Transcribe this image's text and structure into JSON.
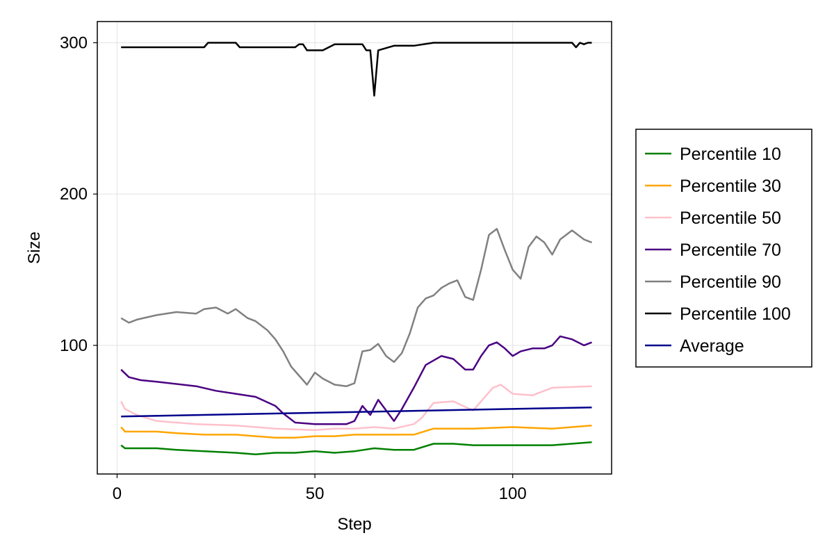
{
  "chart_data": {
    "type": "line",
    "xlabel": "Step",
    "ylabel": "Size",
    "xlim": [
      -5,
      125
    ],
    "ylim": [
      15,
      314
    ],
    "xticks": [
      0,
      50,
      100
    ],
    "yticks": [
      100,
      200,
      300
    ],
    "grid": true,
    "legend_position": "right",
    "series": [
      {
        "name": "Percentile 10",
        "color": "#008000",
        "x": [
          1,
          2,
          10,
          15,
          22,
          30,
          35,
          40,
          45,
          50,
          55,
          60,
          65,
          70,
          75,
          80,
          85,
          90,
          100,
          110,
          120
        ],
        "y": [
          34,
          32,
          32,
          31,
          30,
          29,
          28,
          29,
          29,
          30,
          29,
          30,
          32,
          31,
          31,
          35,
          35,
          34,
          34,
          34,
          36
        ]
      },
      {
        "name": "Percentile 30",
        "color": "#FFA500",
        "x": [
          1,
          2,
          10,
          15,
          22,
          30,
          35,
          40,
          45,
          50,
          55,
          60,
          65,
          70,
          75,
          80,
          85,
          90,
          100,
          110,
          120
        ],
        "y": [
          46,
          43,
          43,
          42,
          41,
          41,
          40,
          39,
          39,
          40,
          40,
          41,
          41,
          41,
          41,
          45,
          45,
          45,
          46,
          45,
          47
        ]
      },
      {
        "name": "Percentile 50",
        "color": "#FFC0CB",
        "x": [
          1,
          2,
          5,
          10,
          20,
          30,
          40,
          50,
          55,
          60,
          65,
          70,
          75,
          77,
          80,
          85,
          90,
          95,
          97,
          100,
          105,
          110,
          120
        ],
        "y": [
          63,
          58,
          54,
          50,
          48,
          47,
          45,
          44,
          45,
          45,
          46,
          45,
          48,
          52,
          62,
          63,
          57,
          72,
          74,
          68,
          67,
          72,
          73
        ]
      },
      {
        "name": "Percentile 70",
        "color": "#4B0082",
        "x": [
          1,
          3,
          6,
          10,
          20,
          25,
          30,
          35,
          40,
          42,
          45,
          50,
          55,
          58,
          60,
          62,
          64,
          66,
          70,
          72,
          75,
          78,
          80,
          82,
          85,
          88,
          90,
          92,
          94,
          96,
          98,
          100,
          102,
          105,
          108,
          110,
          112,
          115,
          118,
          120
        ],
        "y": [
          84,
          79,
          77,
          76,
          73,
          70,
          68,
          66,
          60,
          55,
          49,
          48,
          48,
          48,
          50,
          60,
          54,
          64,
          50,
          58,
          72,
          87,
          90,
          93,
          91,
          84,
          84,
          93,
          100,
          102,
          98,
          93,
          96,
          98,
          98,
          100,
          106,
          104,
          100,
          102
        ]
      },
      {
        "name": "Percentile 90",
        "color": "#808080",
        "x": [
          1,
          3,
          5,
          10,
          15,
          20,
          22,
          25,
          28,
          30,
          33,
          35,
          38,
          40,
          42,
          44,
          46,
          48,
          50,
          52,
          55,
          58,
          60,
          62,
          64,
          66,
          68,
          70,
          72,
          74,
          76,
          78,
          80,
          82,
          84,
          86,
          88,
          90,
          92,
          94,
          96,
          98,
          100,
          102,
          104,
          106,
          108,
          110,
          112,
          115,
          118,
          120
        ],
        "y": [
          118,
          115,
          117,
          120,
          122,
          121,
          124,
          125,
          121,
          124,
          118,
          116,
          110,
          104,
          96,
          86,
          80,
          74,
          82,
          78,
          74,
          73,
          75,
          96,
          97,
          101,
          93,
          89,
          95,
          108,
          125,
          131,
          133,
          138,
          141,
          143,
          132,
          130,
          150,
          173,
          177,
          163,
          150,
          144,
          165,
          172,
          168,
          160,
          170,
          176,
          170,
          168
        ]
      },
      {
        "name": "Percentile 100",
        "color": "#000000",
        "x": [
          1,
          10,
          22,
          23,
          30,
          31,
          40,
          45,
          46,
          47,
          48,
          52,
          55,
          60,
          62,
          63,
          64,
          65,
          66,
          70,
          75,
          80,
          90,
          100,
          110,
          115,
          116,
          117,
          118,
          119,
          120
        ],
        "y": [
          297,
          297,
          297,
          300,
          300,
          297,
          297,
          297,
          299,
          299,
          295,
          295,
          299,
          299,
          299,
          295,
          295,
          265,
          295,
          298,
          298,
          300,
          300,
          300,
          300,
          300,
          297,
          300,
          299,
          300,
          300
        ]
      },
      {
        "name": "Average",
        "color": "#00008B",
        "x": [
          1,
          120
        ],
        "y": [
          53,
          59
        ]
      }
    ]
  }
}
